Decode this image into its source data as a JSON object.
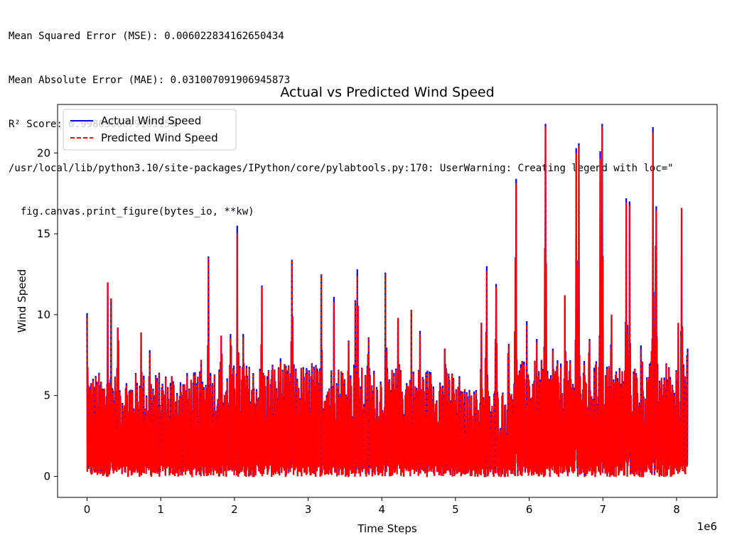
{
  "output": {
    "lines": [
      "Mean Squared Error (MSE): 0.006022834162650434",
      "Mean Absolute Error (MAE): 0.031007091906945873",
      "R² Score: 0.9986506079105159",
      "/usr/local/lib/python3.10/site-packages/IPython/core/pylabtools.py:170: UserWarning: Creating legend with loc=\"",
      "  fig.canvas.print_figure(bytes_io, **kw)"
    ]
  },
  "chart_data": {
    "type": "line",
    "title": "Actual vs Predicted Wind Speed",
    "xlabel": "Time Steps",
    "ylabel": "Wind Speed",
    "x_offset_label": "1e6",
    "xlim": [
      -0.4,
      8.55
    ],
    "ylim": [
      -1.3,
      23.0
    ],
    "x_ticks": [
      0,
      1,
      2,
      3,
      4,
      5,
      6,
      7,
      8
    ],
    "y_ticks": [
      0,
      5,
      10,
      15,
      20
    ],
    "grid": false,
    "legend_position": "top-left",
    "x_range": [
      0,
      8.15
    ],
    "series": [
      {
        "name": "Actual Wind Speed",
        "color": "#0000ff",
        "style": "solid",
        "y_range": [
          0,
          21.8
        ]
      },
      {
        "name": "Predicted Wind Speed",
        "color": "#ff0000",
        "style": "dashed",
        "y_range": [
          -0.2,
          21.7
        ]
      }
    ],
    "peaks": [
      {
        "x": 0.0,
        "y": 10.1
      },
      {
        "x": 0.28,
        "y": 12.0
      },
      {
        "x": 0.33,
        "y": 11.0
      },
      {
        "x": 0.42,
        "y": 9.2
      },
      {
        "x": 0.73,
        "y": 8.9
      },
      {
        "x": 0.85,
        "y": 7.8
      },
      {
        "x": 1.15,
        "y": 6.2
      },
      {
        "x": 1.32,
        "y": 5.7
      },
      {
        "x": 1.55,
        "y": 7.2
      },
      {
        "x": 1.65,
        "y": 13.6
      },
      {
        "x": 1.82,
        "y": 8.7
      },
      {
        "x": 1.95,
        "y": 8.8
      },
      {
        "x": 2.04,
        "y": 15.5
      },
      {
        "x": 2.12,
        "y": 8.8
      },
      {
        "x": 2.37,
        "y": 11.8
      },
      {
        "x": 2.52,
        "y": 6.9
      },
      {
        "x": 2.63,
        "y": 7.3
      },
      {
        "x": 2.78,
        "y": 13.4
      },
      {
        "x": 2.92,
        "y": 5.1
      },
      {
        "x": 3.05,
        "y": 7.0
      },
      {
        "x": 3.18,
        "y": 12.5
      },
      {
        "x": 3.35,
        "y": 11.1
      },
      {
        "x": 3.45,
        "y": 6.5
      },
      {
        "x": 3.55,
        "y": 8.4
      },
      {
        "x": 3.64,
        "y": 10.9
      },
      {
        "x": 3.67,
        "y": 12.8
      },
      {
        "x": 3.82,
        "y": 8.6
      },
      {
        "x": 4.05,
        "y": 12.6
      },
      {
        "x": 4.22,
        "y": 9.8
      },
      {
        "x": 4.4,
        "y": 10.3
      },
      {
        "x": 4.52,
        "y": 9.0
      },
      {
        "x": 4.85,
        "y": 7.9
      },
      {
        "x": 5.05,
        "y": 6.2
      },
      {
        "x": 5.22,
        "y": 5.0
      },
      {
        "x": 5.35,
        "y": 9.5
      },
      {
        "x": 5.42,
        "y": 13.0
      },
      {
        "x": 5.55,
        "y": 11.9
      },
      {
        "x": 5.72,
        "y": 8.2
      },
      {
        "x": 5.82,
        "y": 18.4
      },
      {
        "x": 5.97,
        "y": 9.6
      },
      {
        "x": 6.1,
        "y": 8.5
      },
      {
        "x": 6.22,
        "y": 21.8
      },
      {
        "x": 6.32,
        "y": 7.9
      },
      {
        "x": 6.48,
        "y": 11.2
      },
      {
        "x": 6.64,
        "y": 20.3
      },
      {
        "x": 6.67,
        "y": 20.6
      },
      {
        "x": 6.82,
        "y": 8.5
      },
      {
        "x": 6.96,
        "y": 20.1
      },
      {
        "x": 6.99,
        "y": 21.8
      },
      {
        "x": 7.12,
        "y": 10.0
      },
      {
        "x": 7.32,
        "y": 17.2
      },
      {
        "x": 7.36,
        "y": 17.0
      },
      {
        "x": 7.52,
        "y": 8.1
      },
      {
        "x": 7.68,
        "y": 21.6
      },
      {
        "x": 7.72,
        "y": 16.7
      },
      {
        "x": 7.88,
        "y": 6.0
      },
      {
        "x": 8.02,
        "y": 9.5
      },
      {
        "x": 8.07,
        "y": 16.6
      },
      {
        "x": 8.15,
        "y": 7.9
      }
    ]
  }
}
